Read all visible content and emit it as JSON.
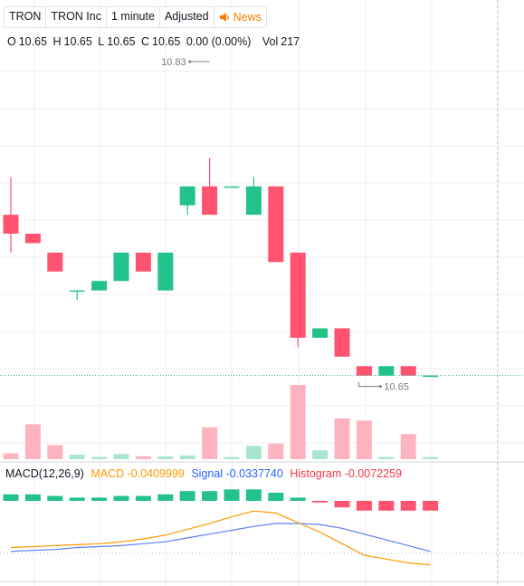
{
  "header": {
    "symbol": "TRON",
    "name": "TRON Inc",
    "interval": "1 minute",
    "adjustment": "Adjusted",
    "news_label": "News",
    "news_icon": "speaker-icon"
  },
  "ohlc": {
    "o_label": "O",
    "o": "10.65",
    "h_label": "H",
    "h": "10.65",
    "l_label": "L",
    "l": "10.65",
    "c_label": "C",
    "c": "10.65",
    "change": "0.00 (0.00%)",
    "vol_label": "Vol",
    "vol": "217"
  },
  "macd_legend": {
    "title": "MACD(12,26,9)",
    "macd": "MACD -0.0409999",
    "signal": "Signal -0.0337740",
    "histogram": "Histogram -0.0072259"
  },
  "colors": {
    "up": "#22c28a",
    "down": "#ff5370",
    "vol_up": "#a8e6cf",
    "vol_down": "#ffb3c1",
    "macd_line": "#ff9800",
    "signal_line": "#5b7ff0",
    "grid": "#eceff3",
    "price_line": "#26a69a"
  },
  "chart_data": {
    "type": "candlestick",
    "high_marker": "10.83",
    "low_marker": "10.65",
    "candles": [
      {
        "o": 10.75,
        "h": 10.77,
        "l": 10.73,
        "c": 10.74,
        "vol": 0.08,
        "macd_hist": 0.002
      },
      {
        "o": 10.74,
        "h": 10.74,
        "l": 10.735,
        "c": 10.735,
        "vol": 0.47,
        "macd_hist": 0.002
      },
      {
        "o": 10.73,
        "h": 10.73,
        "l": 10.72,
        "c": 10.72,
        "vol": 0.19,
        "macd_hist": 0.0015
      },
      {
        "o": 10.71,
        "h": 10.71,
        "l": 10.705,
        "c": 10.71,
        "vol": 0.06,
        "macd_hist": 0.001
      },
      {
        "o": 10.71,
        "h": 10.715,
        "l": 10.71,
        "c": 10.715,
        "vol": 0.03,
        "macd_hist": 0.001
      },
      {
        "o": 10.715,
        "h": 10.73,
        "l": 10.715,
        "c": 10.73,
        "vol": 0.07,
        "macd_hist": 0.0015
      },
      {
        "o": 10.73,
        "h": 10.73,
        "l": 10.72,
        "c": 10.72,
        "vol": 0.04,
        "macd_hist": 0.0015
      },
      {
        "o": 10.71,
        "h": 10.73,
        "l": 10.71,
        "c": 10.73,
        "vol": 0.04,
        "macd_hist": 0.002
      },
      {
        "o": 10.755,
        "h": 10.765,
        "l": 10.75,
        "c": 10.765,
        "vol": 0.05,
        "macd_hist": 0.003
      },
      {
        "o": 10.765,
        "h": 10.78,
        "l": 10.75,
        "c": 10.75,
        "vol": 0.43,
        "macd_hist": 0.003
      },
      {
        "o": 10.765,
        "h": 10.765,
        "l": 10.765,
        "c": 10.765,
        "vol": 0.03,
        "macd_hist": 0.0035
      },
      {
        "o": 10.75,
        "h": 10.77,
        "l": 10.75,
        "c": 10.765,
        "vol": 0.18,
        "macd_hist": 0.0035
      },
      {
        "o": 10.765,
        "h": 10.765,
        "l": 10.725,
        "c": 10.725,
        "vol": 0.21,
        "macd_hist": 0.0025
      },
      {
        "o": 10.73,
        "h": 10.73,
        "l": 10.68,
        "c": 10.685,
        "vol": 1.0,
        "macd_hist": 0.001
      },
      {
        "o": 10.685,
        "h": 10.69,
        "l": 10.685,
        "c": 10.69,
        "vol": 0.12,
        "macd_hist": -0.0005
      },
      {
        "o": 10.69,
        "h": 10.69,
        "l": 10.675,
        "c": 10.675,
        "vol": 0.55,
        "macd_hist": -0.002
      },
      {
        "o": 10.67,
        "h": 10.67,
        "l": 10.665,
        "c": 10.665,
        "vol": 0.52,
        "macd_hist": -0.003
      },
      {
        "o": 10.665,
        "h": 10.67,
        "l": 10.665,
        "c": 10.67,
        "vol": 0.03,
        "macd_hist": -0.003
      },
      {
        "o": 10.67,
        "h": 10.67,
        "l": 10.665,
        "c": 10.665,
        "vol": 0.34,
        "macd_hist": -0.003
      },
      {
        "o": 10.665,
        "h": 10.665,
        "l": 10.665,
        "c": 10.665,
        "vol": 0.03,
        "macd_hist": -0.003
      }
    ],
    "macd_line": [
      0.0,
      0.0005,
      0.001,
      0.0015,
      0.002,
      0.003,
      0.0045,
      0.0065,
      0.0095,
      0.0125,
      0.016,
      0.019,
      0.018,
      0.013,
      0.008,
      0.002,
      -0.004,
      -0.006,
      -0.008,
      -0.009
    ],
    "signal_line": [
      -0.002,
      -0.0015,
      -0.001,
      0.0,
      0.0005,
      0.001,
      0.002,
      0.003,
      0.005,
      0.007,
      0.009,
      0.011,
      0.0125,
      0.0125,
      0.012,
      0.01,
      0.007,
      0.004,
      0.001,
      -0.002
    ]
  }
}
